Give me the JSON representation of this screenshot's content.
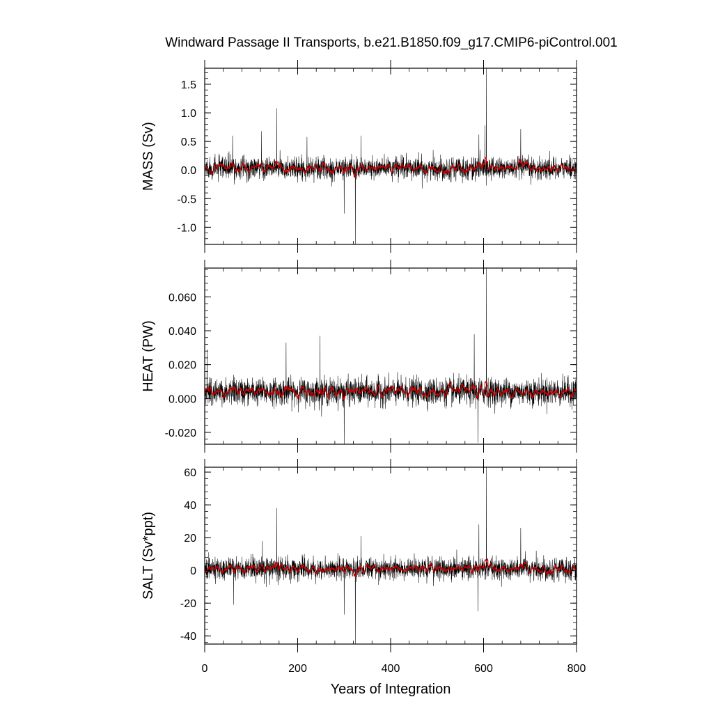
{
  "chart_data": {
    "type": "line",
    "title": "Windward Passage II Transports, b.e21.B1850.f09_g17.CMIP6-piControl.001",
    "xlabel": "Years of Integration",
    "xlim": [
      0,
      800
    ],
    "xticks": [
      "0",
      "200",
      "400",
      "600",
      "800"
    ],
    "xtick_values": [
      0,
      200,
      400,
      600,
      800
    ],
    "x_sampling": "monthly values, years 0–800",
    "series_colors": {
      "monthly": "#000000",
      "smoothed": "#cc0000"
    },
    "panels": [
      {
        "name": "mass",
        "ylabel": "MASS (Sv)",
        "ylim": [
          -1.3,
          1.78
        ],
        "ytick_values": [
          -1.0,
          -0.5,
          0.0,
          0.5,
          1.0,
          1.5
        ],
        "yticks": [
          "-1.0",
          "-0.5",
          "0.0",
          "0.5",
          "1.0",
          "1.5"
        ],
        "baseline": 0.03,
        "noise_amplitude": 0.16,
        "smoothed_amplitude": 0.04,
        "spikes": [
          {
            "year": 60,
            "value": 0.6
          },
          {
            "year": 122,
            "value": 0.68
          },
          {
            "year": 155,
            "value": 1.08
          },
          {
            "year": 220,
            "value": 0.58
          },
          {
            "year": 300,
            "value": -0.76
          },
          {
            "year": 324,
            "value": -1.3
          },
          {
            "year": 336,
            "value": 0.6
          },
          {
            "year": 590,
            "value": 0.62
          },
          {
            "year": 603,
            "value": 0.78
          },
          {
            "year": 606,
            "value": 1.78
          },
          {
            "year": 680,
            "value": 0.72
          }
        ]
      },
      {
        "name": "heat",
        "ylabel": "HEAT (PW)",
        "ylim": [
          -0.027,
          0.077
        ],
        "ytick_values": [
          -0.02,
          0.0,
          0.02,
          0.04,
          0.06
        ],
        "yticks": [
          "-0.020",
          "0.000",
          "0.020",
          "0.040",
          "0.060"
        ],
        "baseline": 0.004,
        "noise_amplitude": 0.0065,
        "smoothed_amplitude": 0.0018,
        "spikes": [
          {
            "year": 5,
            "value": 0.029
          },
          {
            "year": 175,
            "value": 0.033
          },
          {
            "year": 248,
            "value": 0.037
          },
          {
            "year": 300,
            "value": -0.027
          },
          {
            "year": 580,
            "value": 0.038
          },
          {
            "year": 588,
            "value": -0.026
          },
          {
            "year": 606,
            "value": 0.077
          }
        ]
      },
      {
        "name": "salt",
        "ylabel": "SALT (Sv*ppt)",
        "ylim": [
          -45,
          63
        ],
        "ytick_values": [
          -40,
          -20,
          0,
          20,
          40,
          60
        ],
        "yticks": [
          "-40",
          "-20",
          "0",
          "20",
          "40",
          "60"
        ],
        "baseline": 1,
        "noise_amplitude": 5.5,
        "smoothed_amplitude": 1.5,
        "spikes": [
          {
            "year": 62,
            "value": -21
          },
          {
            "year": 124,
            "value": 18
          },
          {
            "year": 155,
            "value": 38
          },
          {
            "year": 300,
            "value": -27
          },
          {
            "year": 324,
            "value": -45
          },
          {
            "year": 336,
            "value": 21
          },
          {
            "year": 590,
            "value": 28
          },
          {
            "year": 606,
            "value": 63
          },
          {
            "year": 588,
            "value": -25
          },
          {
            "year": 680,
            "value": 26
          }
        ]
      }
    ]
  }
}
